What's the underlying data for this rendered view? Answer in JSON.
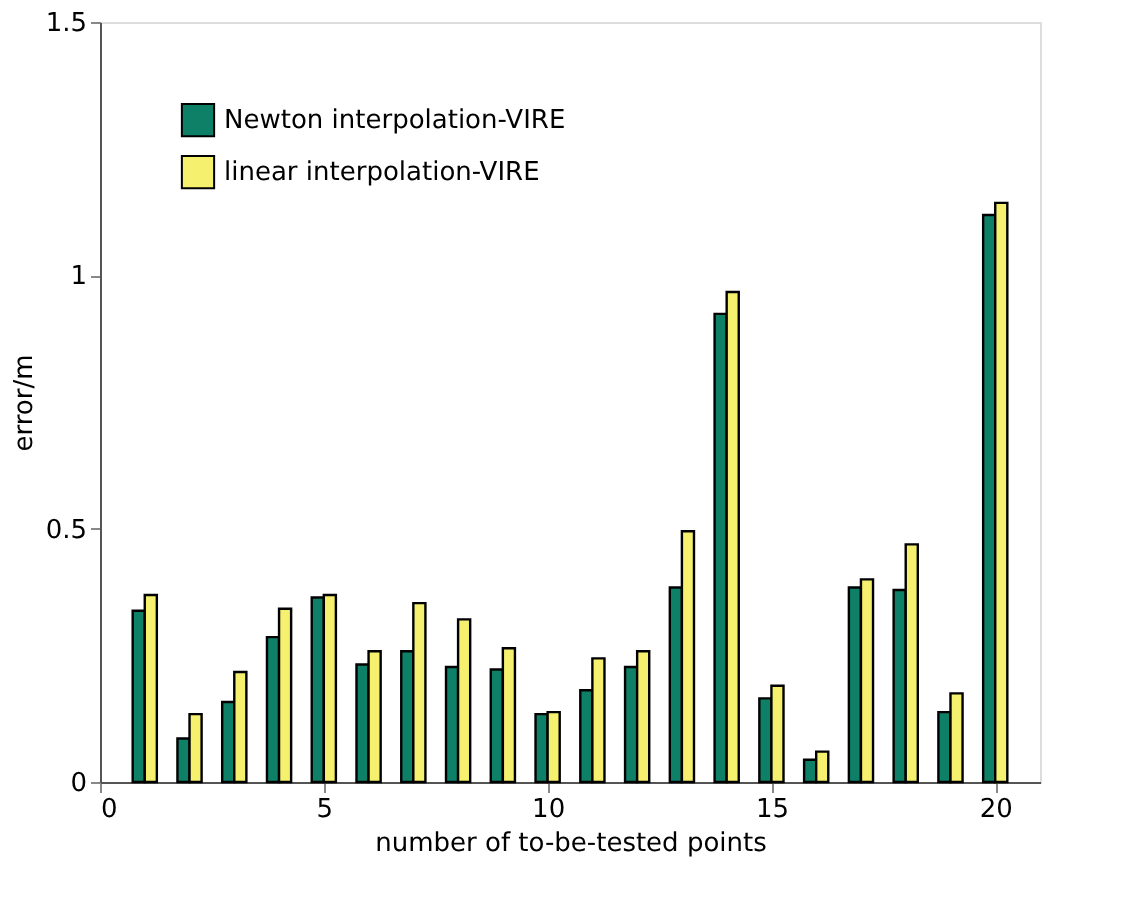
{
  "chart_data": {
    "type": "bar",
    "xlabel": "number of to-be-tested points",
    "ylabel": "error/m",
    "x": [
      1,
      2,
      3,
      4,
      5,
      6,
      7,
      8,
      9,
      10,
      11,
      12,
      13,
      14,
      15,
      16,
      17,
      18,
      19,
      20
    ],
    "series": [
      {
        "name": "Newton interpolation-VIRE",
        "color": "#0f8068",
        "values": [
          0.338,
          0.086,
          0.158,
          0.286,
          0.364,
          0.232,
          0.258,
          0.227,
          0.222,
          0.134,
          0.181,
          0.227,
          0.384,
          0.924,
          0.165,
          0.044,
          0.384,
          0.379,
          0.138,
          1.119
        ]
      },
      {
        "name": "linear interpolation-VIRE",
        "color": "#f5f06e",
        "values": [
          0.369,
          0.134,
          0.217,
          0.342,
          0.369,
          0.258,
          0.353,
          0.321,
          0.264,
          0.138,
          0.244,
          0.258,
          0.495,
          0.967,
          0.19,
          0.06,
          0.4,
          0.469,
          0.175,
          1.143
        ]
      }
    ],
    "xlim": [
      0,
      21
    ],
    "xticks": [
      0,
      5,
      10,
      15,
      20
    ],
    "ylim": [
      0,
      1.5
    ],
    "yticks": [
      0,
      0.5,
      1,
      1.5
    ],
    "grid": false,
    "legend": "top left"
  }
}
